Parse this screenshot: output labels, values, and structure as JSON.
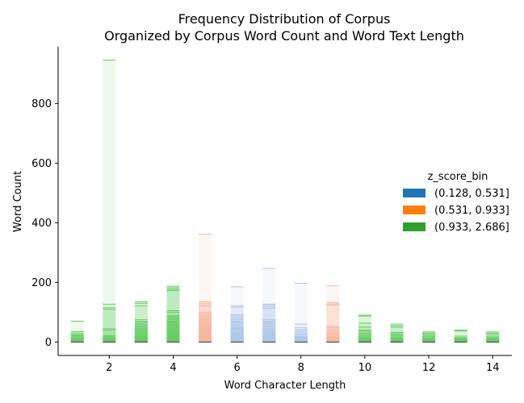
{
  "chart_data": {
    "type": "bar",
    "title": "Frequency Distribution of Corpus",
    "subtitle": "Organized by Corpus Word Count and Word Text Length",
    "xlabel": "Word Character Length",
    "ylabel": "Word Count",
    "xlim": [
      0.4,
      14.6
    ],
    "ylim": [
      -45,
      990
    ],
    "x_ticks": [
      2,
      4,
      6,
      8,
      10,
      12,
      14
    ],
    "y_ticks": [
      0,
      200,
      400,
      600,
      800
    ],
    "legend": {
      "title": "z_score_bin",
      "placement": "center-right",
      "entries": [
        "(0.128, 0.531]",
        "(0.531, 0.933]",
        "(0.933, 2.686]"
      ]
    },
    "series": [
      {
        "name": "(0.128, 0.531]",
        "color": "#1f77b4",
        "bar_color": "#aec7e8",
        "points": [
          {
            "x": 6,
            "values": [
              185,
              122,
              117,
              92,
              88,
              82,
              76,
              70,
              65,
              58,
              50,
              46,
              42,
              36,
              30,
              25,
              20,
              15,
              10,
              5,
              2
            ]
          },
          {
            "x": 7,
            "values": [
              247,
              127,
              123,
              118,
              113,
              75,
              70,
              65,
              60,
              52,
              45,
              40,
              35,
              30,
              25,
              20,
              15,
              10,
              5,
              2
            ]
          },
          {
            "x": 8,
            "values": [
              197,
              60,
              48,
              42,
              36,
              30,
              24,
              18,
              12,
              6,
              2
            ]
          }
        ]
      },
      {
        "name": "(0.531, 0.933]",
        "color": "#ff7f0e",
        "bar_color": "#f4b8a0",
        "points": [
          {
            "x": 5,
            "values": [
              362,
              135,
              130,
              125,
              120,
              100,
              95,
              90,
              85,
              80,
              75,
              70,
              65,
              60,
              55,
              50,
              45,
              40,
              35,
              30,
              25,
              20,
              15,
              10,
              5,
              2
            ]
          },
          {
            "x": 9,
            "values": [
              188,
              133,
              128,
              124,
              53,
              48,
              42,
              36,
              30,
              24,
              18,
              12,
              6,
              2
            ]
          }
        ]
      },
      {
        "name": "(0.933, 2.686]",
        "color": "#2ca02c",
        "bar_color": "#66cc66",
        "points": [
          {
            "x": 1,
            "values": [
              70,
              35,
              30,
              25,
              12,
              8,
              4
            ]
          },
          {
            "x": 2,
            "values": [
              945,
              127,
              115,
              110,
              45,
              40,
              22,
              18,
              14,
              10,
              6,
              2
            ]
          },
          {
            "x": 3,
            "values": [
              135,
              130,
              122,
              75,
              70,
              65,
              60,
              55,
              50,
              45,
              40,
              35,
              30,
              25,
              20,
              15,
              10,
              5,
              2
            ]
          },
          {
            "x": 4,
            "values": [
              187,
              182,
              177,
              173,
              105,
              100,
              88,
              85,
              80,
              75,
              70,
              65,
              60,
              55,
              50,
              45,
              40,
              35,
              30,
              25,
              20,
              15,
              10,
              5,
              2
            ]
          },
          {
            "x": 10,
            "values": [
              90,
              87,
              63,
              50,
              40,
              36,
              30,
              25,
              20,
              15,
              10,
              5,
              2
            ]
          },
          {
            "x": 11,
            "values": [
              60,
              55,
              50,
              32,
              28,
              24,
              20,
              15,
              10,
              5,
              2
            ]
          },
          {
            "x": 12,
            "values": [
              34,
              30,
              26,
              22,
              18,
              14,
              10,
              6,
              2
            ]
          },
          {
            "x": 13,
            "values": [
              40,
              37,
              20,
              15,
              10,
              6,
              2
            ]
          },
          {
            "x": 14,
            "values": [
              34,
              30,
              26,
              20,
              15,
              10,
              6,
              2
            ]
          }
        ]
      }
    ]
  }
}
